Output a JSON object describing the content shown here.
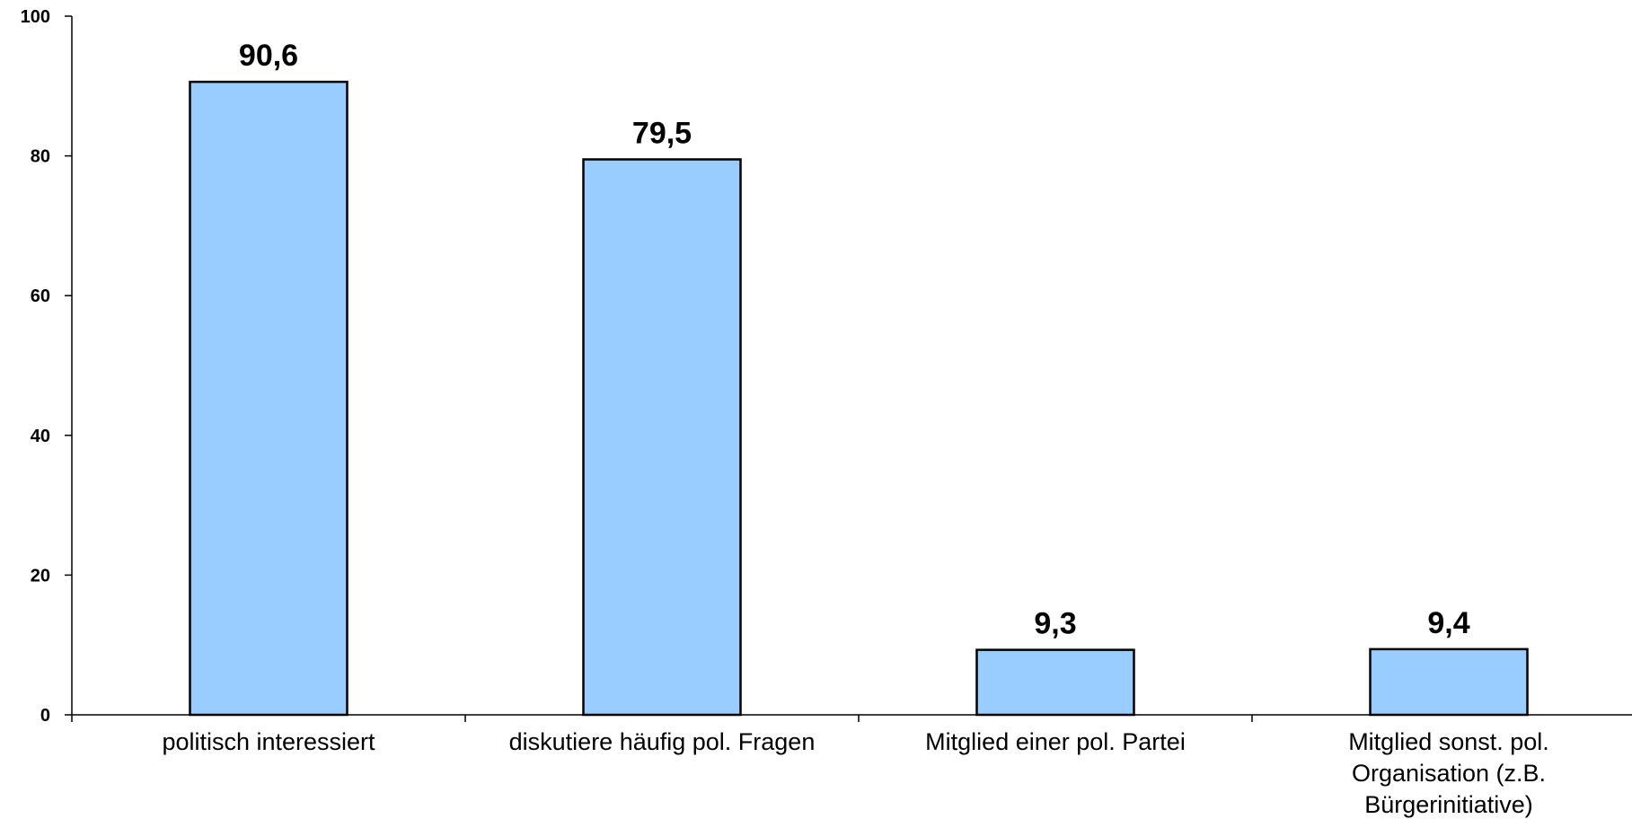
{
  "chart_data": {
    "type": "bar",
    "categories": [
      [
        "politisch interessiert"
      ],
      [
        "diskutiere häufig pol. Fragen"
      ],
      [
        "Mitglied einer pol. Partei"
      ],
      [
        "Mitglied sonst. pol.",
        "Organisation (z.B.",
        "Bürgerinitiative)"
      ]
    ],
    "values": [
      90.6,
      79.5,
      9.3,
      9.4
    ],
    "value_labels": [
      "90,6",
      "79,5",
      "9,3",
      "9,4"
    ],
    "ylim": [
      0,
      100
    ],
    "yticks": [
      0,
      20,
      40,
      60,
      80,
      100
    ],
    "title": "",
    "xlabel": "",
    "ylabel": "",
    "grid": false,
    "colors": {
      "bar_fill": "#99ccff",
      "bar_stroke": "#000000"
    }
  }
}
